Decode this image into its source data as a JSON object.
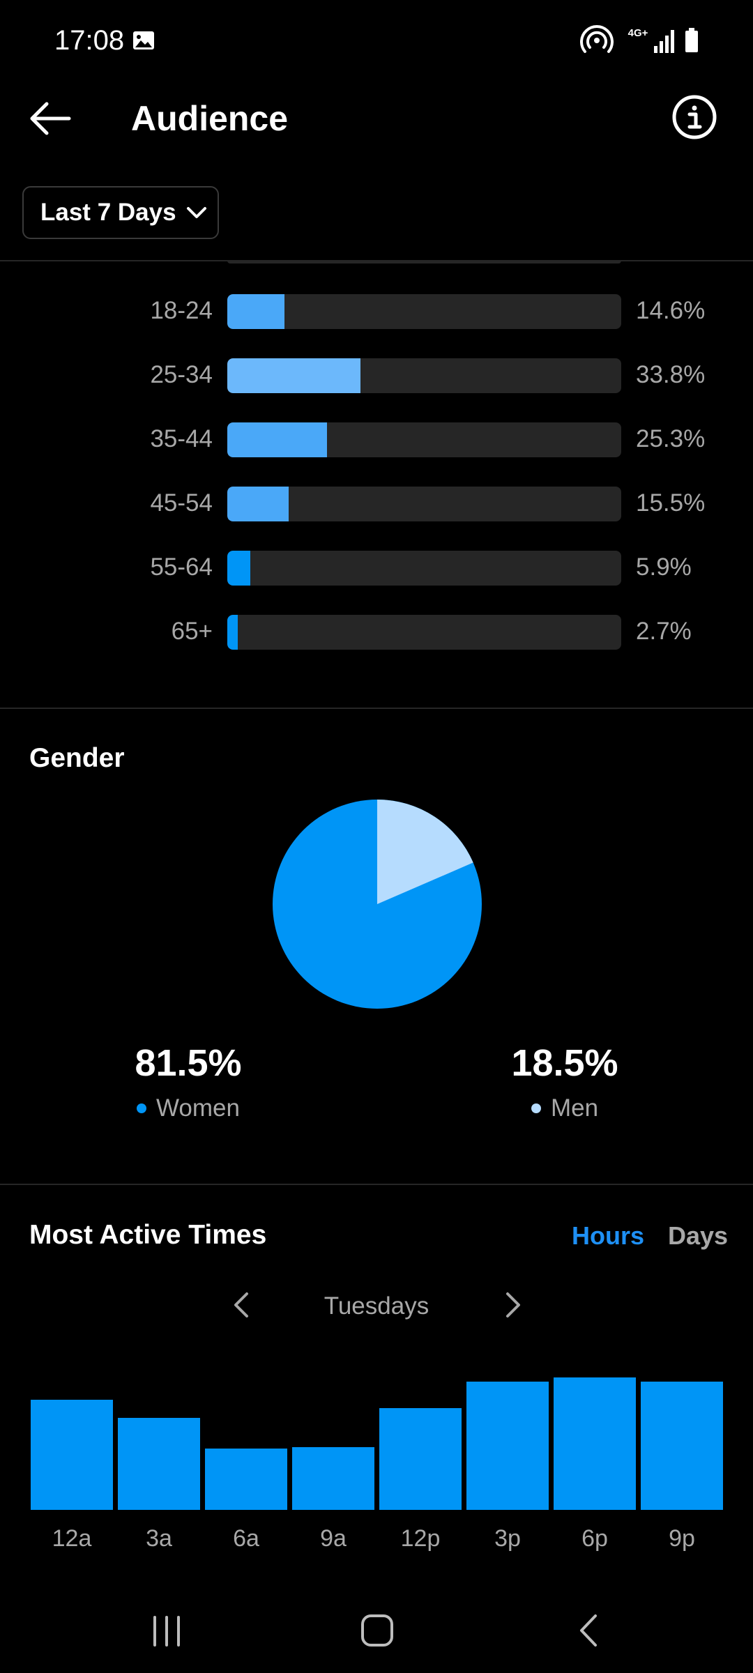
{
  "status_bar": {
    "time": "17:08",
    "network": "4G+"
  },
  "header": {
    "title": "Audience"
  },
  "filter": {
    "range_label": "Last 7 Days"
  },
  "age_range": {
    "items": [
      {
        "label": "18-24",
        "value": "14.6%",
        "fraction": 0.146,
        "color": "#4aa8f8"
      },
      {
        "label": "25-34",
        "value": "33.8%",
        "fraction": 0.338,
        "color": "#6cb8fb"
      },
      {
        "label": "35-44",
        "value": "25.3%",
        "fraction": 0.253,
        "color": "#4aa8f8"
      },
      {
        "label": "45-54",
        "value": "15.5%",
        "fraction": 0.155,
        "color": "#4aa8f8"
      },
      {
        "label": "55-64",
        "value": "5.9%",
        "fraction": 0.059,
        "color": "#0095f6"
      },
      {
        "label": "65+",
        "value": "2.7%",
        "fraction": 0.027,
        "color": "#0095f6"
      }
    ]
  },
  "gender": {
    "title": "Gender",
    "women": {
      "percent": "81.5%",
      "label": "Women",
      "color": "#0095f6"
    },
    "men": {
      "percent": "18.5%",
      "label": "Men",
      "color": "#b6dcfe"
    }
  },
  "most_active": {
    "title": "Most Active Times",
    "tabs": {
      "hours": "Hours",
      "days": "Days"
    },
    "day_label": "Tuesdays"
  },
  "chart_data": {
    "type": "bar",
    "categories": [
      "12a",
      "3a",
      "6a",
      "9a",
      "12p",
      "3p",
      "6p",
      "9p"
    ],
    "values": [
      79,
      66,
      44,
      45,
      73,
      92,
      95,
      92
    ],
    "ylim": [
      0,
      100
    ],
    "color": "#0095f6"
  },
  "colors": {
    "accent": "#0095f6",
    "track": "#262626",
    "muted_text": "#a8a8a8"
  }
}
